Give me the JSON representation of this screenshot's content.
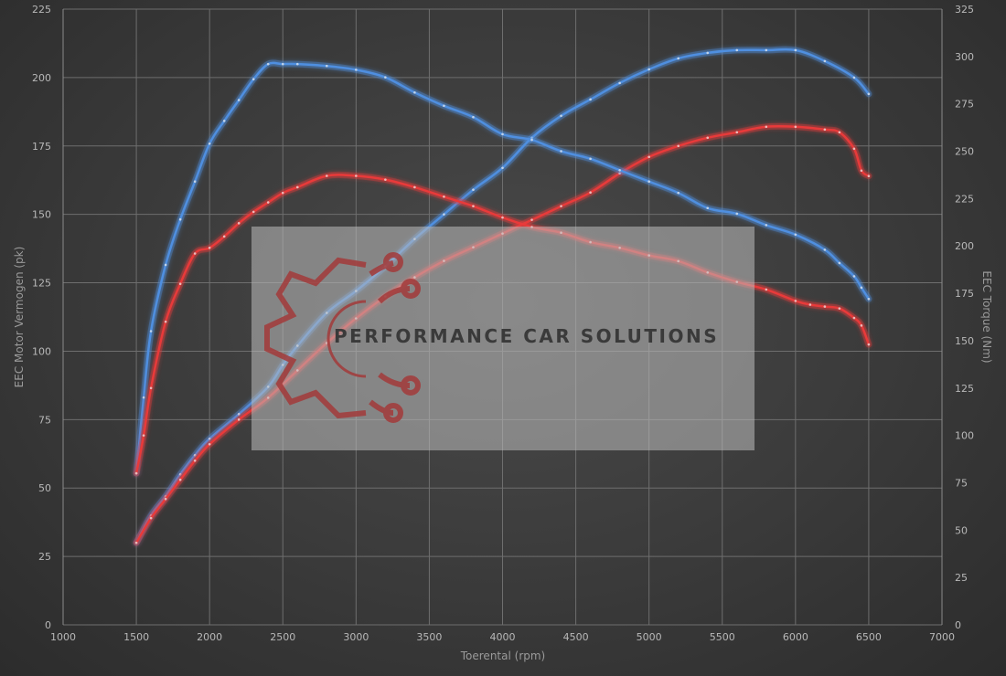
{
  "chart_data": {
    "type": "line",
    "xlabel": "Toerental (rpm)",
    "ylabel_left": "EEC Motor Vermogen (pk)",
    "ylabel_right": "EEC Torque (Nm)",
    "xlim": [
      1000,
      7000
    ],
    "ylim_left": [
      0,
      225
    ],
    "ylim_right": [
      0,
      325
    ],
    "x_ticks": [
      1000,
      1500,
      2000,
      2500,
      3000,
      3500,
      4000,
      4500,
      5000,
      5500,
      6000,
      6500,
      7000
    ],
    "y_left_ticks": [
      0,
      25,
      50,
      75,
      100,
      125,
      150,
      175,
      200,
      225
    ],
    "y_right_ticks": [
      0,
      25,
      50,
      75,
      100,
      125,
      150,
      175,
      200,
      225,
      250,
      275,
      300,
      325
    ],
    "grid": true,
    "colors": {
      "blue": "#4f8fe0",
      "red": "#e83a3a"
    },
    "series": [
      {
        "axis": "left",
        "color": "#4f8fe0",
        "x": [
          1500,
          1600,
          1700,
          1800,
          1900,
          2000,
          2200,
          2400,
          2500,
          2600,
          2800,
          3000,
          3200,
          3400,
          3600,
          3800,
          4000,
          4200,
          4400,
          4600,
          4800,
          5000,
          5200,
          5400,
          5600,
          5800,
          6000,
          6200,
          6400,
          6500
        ],
        "y": [
          30,
          40,
          47,
          55,
          62,
          68,
          77,
          87,
          95,
          102,
          114,
          122,
          131,
          141,
          150,
          159,
          167,
          178,
          186,
          192,
          198,
          203,
          207,
          209,
          210,
          210,
          210,
          206,
          200,
          194
        ]
      },
      {
        "axis": "left",
        "color": "#e83a3a",
        "x": [
          1500,
          1600,
          1700,
          1800,
          1900,
          2000,
          2200,
          2400,
          2600,
          2800,
          3000,
          3200,
          3400,
          3600,
          3800,
          4000,
          4200,
          4400,
          4600,
          4800,
          5000,
          5200,
          5400,
          5600,
          5800,
          6000,
          6200,
          6300,
          6400,
          6450,
          6500
        ],
        "y": [
          30,
          39,
          46,
          53,
          60,
          66,
          75,
          83,
          93,
          103,
          112,
          120,
          127,
          133,
          138,
          143,
          148,
          153,
          158,
          165,
          171,
          175,
          178,
          180,
          182,
          182,
          181,
          180,
          174,
          166,
          164
        ]
      },
      {
        "axis": "right",
        "color": "#4f8fe0",
        "x": [
          1500,
          1550,
          1600,
          1700,
          1800,
          1900,
          2000,
          2100,
          2200,
          2300,
          2400,
          2500,
          2600,
          2800,
          3000,
          3200,
          3400,
          3600,
          3800,
          4000,
          4200,
          4400,
          4600,
          4800,
          5000,
          5200,
          5400,
          5600,
          5800,
          6000,
          6200,
          6300,
          6400,
          6450,
          6500
        ],
        "y": [
          80,
          120,
          155,
          190,
          214,
          234,
          254,
          266,
          277,
          288,
          296,
          296,
          296,
          295,
          293,
          289,
          281,
          274,
          268,
          259,
          256,
          250,
          246,
          240,
          234,
          228,
          220,
          217,
          211,
          206,
          198,
          191,
          184,
          178,
          172
        ]
      },
      {
        "axis": "right",
        "color": "#e83a3a",
        "x": [
          1500,
          1550,
          1600,
          1700,
          1800,
          1900,
          2000,
          2100,
          2200,
          2300,
          2400,
          2500,
          2600,
          2800,
          3000,
          3200,
          3400,
          3600,
          3800,
          4000,
          4200,
          4400,
          4600,
          4800,
          5000,
          5200,
          5400,
          5600,
          5800,
          6000,
          6100,
          6200,
          6300,
          6400,
          6450,
          6500
        ],
        "y": [
          80,
          100,
          125,
          160,
          180,
          196,
          199,
          205,
          212,
          218,
          223,
          228,
          231,
          237,
          237,
          235,
          231,
          226,
          221,
          215,
          210,
          207,
          202,
          199,
          195,
          192,
          186,
          181,
          177,
          171,
          169,
          168,
          167,
          162,
          158,
          148
        ]
      }
    ]
  },
  "watermark": {
    "text": "PERFORMANCE CAR SOLUTIONS",
    "icon": "gear-circuit-icon"
  }
}
